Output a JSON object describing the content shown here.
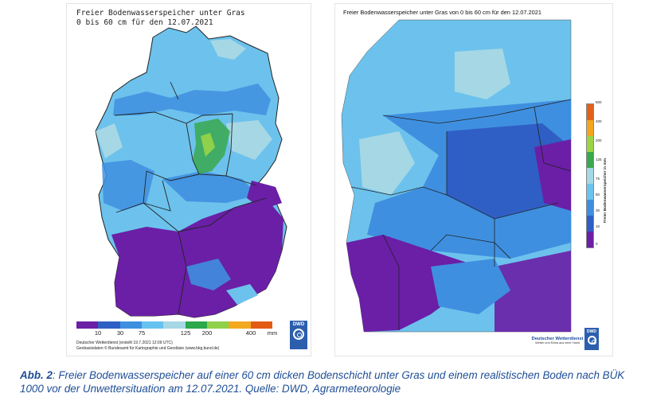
{
  "left_map": {
    "title_line1": "Freier Bodenwasserspeicher unter Gras",
    "title_line2": "0 bis 60 cm für den 12.07.2021",
    "legend": {
      "colors": [
        "#6a1fa6",
        "#2f5fc4",
        "#3f8fe0",
        "#66c3ef",
        "#a6d7e5",
        "#2aa84a",
        "#8fd14a",
        "#f2a81f",
        "#e25b12"
      ],
      "ticks": [
        "10",
        "30",
        "75",
        "125",
        "200",
        "400",
        "mm"
      ]
    },
    "credit_line1": "Deutscher Wetterdienst (erstellt 19.7.2021 12:09 UTC)",
    "credit_line2": "Geobasisdaten © Bundesamt für Kartographie und Geodäsie (www.bkg.bund.de)",
    "logo_text": "DWD"
  },
  "right_map": {
    "title": "Freier Bodenwasserspeicher unter Gras von 0 bis 60 cm für den 12.07.2021",
    "scale": {
      "colors": [
        "#e2621a",
        "#f2a51f",
        "#9bd445",
        "#3aa84f",
        "#a6d7e5",
        "#6bc4ee",
        "#3f8fe0",
        "#2f5fc4",
        "#6a1fa6"
      ],
      "ticks": [
        "600",
        "400",
        "200",
        "125",
        "75",
        "50",
        "30",
        "10",
        "0"
      ],
      "label": "Freier Bodenwasserspeicher in mm"
    },
    "brand_line1": "Deutscher Wetterdienst",
    "brand_line2": "Wetter und Klima aus einer Hand",
    "logo_text": "DWD"
  },
  "caption": {
    "label": "Abb. 2",
    "text": ": Freier Bodenwasserspeicher auf einer 60 cm dicken Bodenschicht unter Gras und einem realistischen Boden nach BÜK 1000 vor der Unwettersituation am 12.07.2021. Quelle: DWD, Agrarmeteorologie"
  }
}
